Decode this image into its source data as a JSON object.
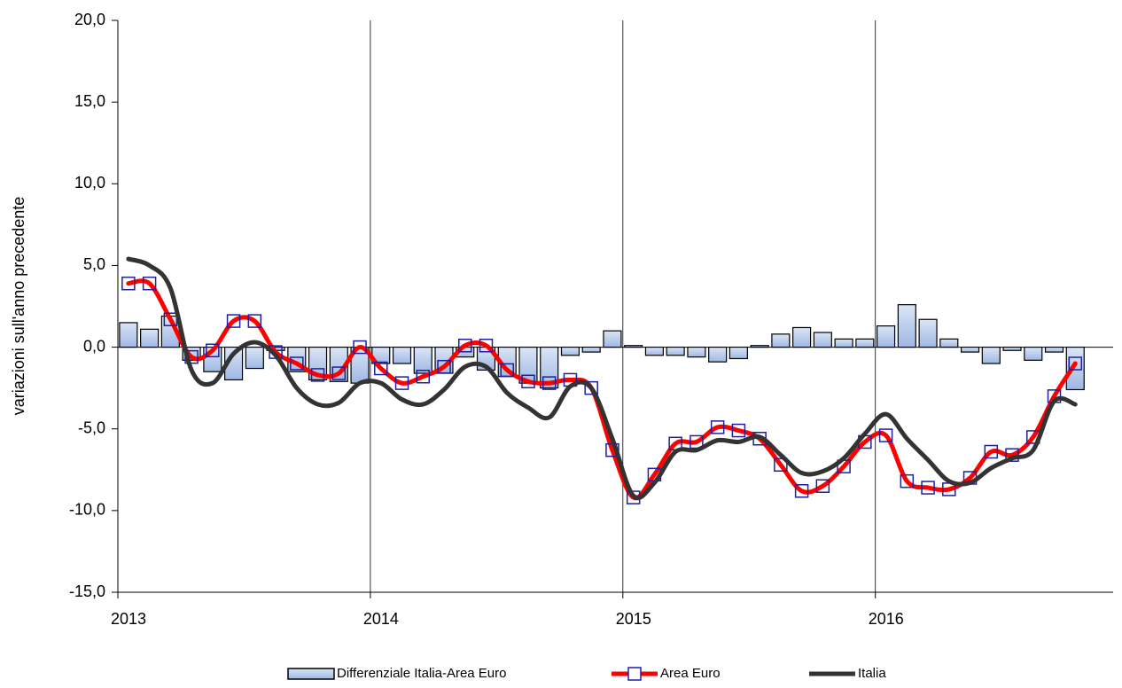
{
  "chart_data": {
    "type": "bar-line",
    "y_label": "variazioni sull'anno precedente",
    "categories": [
      null,
      null,
      null,
      null,
      null,
      null,
      null,
      null,
      null,
      null,
      null,
      null,
      null,
      null,
      null,
      null,
      null,
      null,
      null,
      null,
      null,
      null,
      null,
      null,
      null,
      null,
      null,
      null,
      null,
      null,
      null,
      null,
      null,
      null,
      null,
      null,
      null,
      null,
      null,
      null,
      null,
      null,
      null,
      null,
      null,
      null
    ],
    "xlim": [
      0,
      47.3
    ],
    "xticks": [
      {
        "value": 0,
        "label": "2013"
      },
      {
        "value": 12,
        "label": "2014"
      },
      {
        "value": 24,
        "label": "2015"
      },
      {
        "value": 36,
        "label": "2016"
      }
    ],
    "ylim": [
      -15,
      20
    ],
    "yticks": [
      {
        "value": -15,
        "label": "-15,0"
      },
      {
        "value": -10,
        "label": "-10,0"
      },
      {
        "value": -5,
        "label": "-5,0"
      },
      {
        "value": 0,
        "label": "0,0"
      },
      {
        "value": 5,
        "label": "5,0"
      },
      {
        "value": 10,
        "label": "10,0"
      },
      {
        "value": 15,
        "label": "15,0"
      },
      {
        "value": 20,
        "label": "20,0"
      }
    ],
    "grid": "x",
    "legend": "bottom",
    "series": [
      {
        "name": "Differenziale Italia-Area Euro",
        "kind": "bar",
        "color": "#b8cbea",
        "values": [
          1.5,
          1.1,
          1.9,
          -0.8,
          -1.5,
          -2.0,
          -1.3,
          -0.2,
          -1.5,
          -2.0,
          -2.1,
          -2.2,
          -1.0,
          -1.0,
          -1.6,
          -1.6,
          -0.6,
          -1.4,
          -1.8,
          -2.2,
          -2.5,
          -0.5,
          -0.3,
          1.0,
          0.1,
          -0.5,
          -0.5,
          -0.6,
          -0.9,
          -0.7,
          0.1,
          0.8,
          1.2,
          0.9,
          0.5,
          0.5,
          1.3,
          2.6,
          1.7,
          0.5,
          -0.3,
          -1.0,
          -0.2,
          -0.8,
          -0.3,
          -2.6
        ]
      },
      {
        "name": "Area Euro",
        "kind": "line-marker",
        "color": "#ff0000",
        "values": [
          3.9,
          3.9,
          1.7,
          -0.6,
          -0.2,
          1.6,
          1.6,
          -0.3,
          -1.0,
          -1.7,
          -1.6,
          0.0,
          -1.3,
          -2.2,
          -1.8,
          -1.2,
          0.1,
          0.1,
          -1.4,
          -2.1,
          -2.2,
          -2.0,
          -2.5,
          -6.3,
          -9.2,
          -7.8,
          -5.9,
          -5.8,
          -4.9,
          -5.1,
          -5.6,
          -7.2,
          -8.8,
          -8.5,
          -7.3,
          -5.8,
          -5.4,
          -8.2,
          -8.6,
          -8.7,
          -8.0,
          -6.4,
          -6.6,
          -5.5,
          -3.0,
          -1.0
        ]
      },
      {
        "name": "Italia",
        "kind": "line",
        "color": "#333333",
        "values": [
          5.4,
          5.0,
          3.6,
          -1.4,
          -2.2,
          -0.4,
          0.3,
          -0.5,
          -2.5,
          -3.5,
          -3.4,
          -2.2,
          -2.2,
          -3.2,
          -3.5,
          -2.6,
          -1.2,
          -1.2,
          -2.8,
          -3.7,
          -4.3,
          -2.4,
          -2.5,
          -5.6,
          -9.1,
          -8.3,
          -6.4,
          -6.3,
          -5.7,
          -5.8,
          -5.5,
          -6.6,
          -7.7,
          -7.6,
          -6.8,
          -5.3,
          -4.1,
          -5.6,
          -6.9,
          -8.2,
          -8.3,
          -7.4,
          -6.8,
          -6.3,
          -3.3,
          -3.5
        ]
      }
    ]
  }
}
